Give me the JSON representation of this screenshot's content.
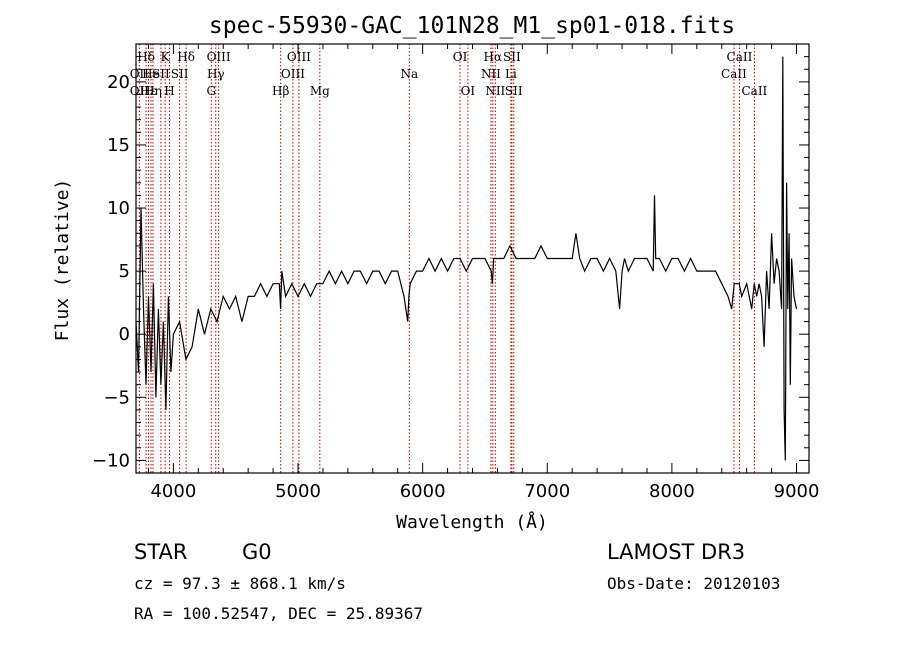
{
  "chart_data": {
    "type": "line",
    "title": "spec-55930-GAC_101N28_M1_sp01-018.fits",
    "xlabel": "Wavelength (Å)",
    "ylabel": "Flux (relative)",
    "xlim": [
      3700,
      9100
    ],
    "ylim": [
      -11,
      23
    ],
    "xticks": [
      4000,
      5000,
      6000,
      7000,
      8000,
      9000
    ],
    "yticks": [
      -10,
      -5,
      0,
      5,
      10,
      15,
      20
    ],
    "series": [
      {
        "name": "flux",
        "x": [
          3700,
          3720,
          3740,
          3760,
          3780,
          3800,
          3820,
          3840,
          3860,
          3880,
          3900,
          3920,
          3940,
          3960,
          3980,
          4000,
          4050,
          4100,
          4150,
          4200,
          4250,
          4300,
          4350,
          4400,
          4450,
          4500,
          4550,
          4600,
          4650,
          4700,
          4750,
          4800,
          4850,
          4860,
          4870,
          4900,
          4950,
          5000,
          5050,
          5100,
          5150,
          5200,
          5250,
          5300,
          5350,
          5400,
          5450,
          5500,
          5550,
          5600,
          5650,
          5700,
          5750,
          5800,
          5850,
          5880,
          5890,
          5900,
          5950,
          6000,
          6050,
          6100,
          6150,
          6200,
          6250,
          6300,
          6350,
          6400,
          6450,
          6500,
          6550,
          6560,
          6570,
          6600,
          6650,
          6700,
          6750,
          6800,
          6850,
          6900,
          6950,
          7000,
          7050,
          7100,
          7150,
          7200,
          7230,
          7260,
          7300,
          7350,
          7400,
          7450,
          7500,
          7550,
          7580,
          7600,
          7620,
          7650,
          7700,
          7750,
          7800,
          7850,
          7860,
          7870,
          7900,
          7950,
          8000,
          8050,
          8100,
          8150,
          8200,
          8250,
          8300,
          8350,
          8400,
          8450,
          8480,
          8500,
          8540,
          8560,
          8600,
          8640,
          8660,
          8680,
          8700,
          8720,
          8740,
          8760,
          8780,
          8800,
          8820,
          8840,
          8860,
          8880,
          8890,
          8900,
          8910,
          8920,
          8930,
          8940,
          8950,
          8960,
          8980,
          9000
        ],
        "y": [
          1,
          -3,
          10,
          2,
          -4,
          3,
          -3,
          4,
          -5,
          2,
          -4,
          1,
          -6,
          3,
          -3,
          0,
          1,
          -2,
          -1,
          2,
          0,
          2,
          1,
          3,
          2,
          3,
          1,
          3,
          3,
          4,
          3,
          4,
          4,
          2,
          5,
          3,
          4,
          3,
          4,
          3,
          4,
          4,
          5,
          4,
          5,
          4,
          5,
          5,
          4,
          5,
          5,
          4,
          5,
          5,
          3,
          1,
          3,
          4,
          5,
          5,
          6,
          5,
          6,
          5,
          6,
          6,
          5,
          6,
          6,
          6,
          5,
          4,
          6,
          6,
          6,
          7,
          6,
          6,
          6,
          6,
          7,
          6,
          6,
          6,
          6,
          6,
          8,
          6,
          5,
          6,
          6,
          5,
          6,
          5,
          2,
          5,
          6,
          5,
          6,
          6,
          6,
          5,
          11,
          6,
          6,
          5,
          6,
          6,
          5,
          6,
          5,
          5,
          5,
          5,
          4,
          3,
          2,
          4,
          4,
          3,
          4,
          2,
          4,
          3,
          4,
          3,
          -1,
          5,
          2,
          8,
          4,
          6,
          5,
          2,
          22,
          -6,
          -10,
          12,
          2,
          8,
          -4,
          6,
          3,
          2
        ]
      }
    ],
    "lines": [
      {
        "label": "Hδ",
        "x": 3781,
        "row": 0
      },
      {
        "label": "OII",
        "x": 3727,
        "row": 1
      },
      {
        "label": "OII",
        "x": 3727,
        "row": 2
      },
      {
        "label": "Hε",
        "x": 3800,
        "row": 2
      },
      {
        "label": "He",
        "x": 3820,
        "row": 1
      },
      {
        "label": "K",
        "x": 3934,
        "row": 0
      },
      {
        "label": "SII",
        "x": 3900,
        "row": 1
      },
      {
        "label": "Hη",
        "x": 3836,
        "row": 2
      },
      {
        "label": "H",
        "x": 3969,
        "row": 2
      },
      {
        "label": "Hδ",
        "x": 4102,
        "row": 0
      },
      {
        "label": "SII",
        "x": 4050,
        "row": 1
      },
      {
        "label": "OIII",
        "x": 4363,
        "row": 0
      },
      {
        "label": "Hγ",
        "x": 4340,
        "row": 1
      },
      {
        "label": "G",
        "x": 4304,
        "row": 2
      },
      {
        "label": "Hβ",
        "x": 4861,
        "row": 2
      },
      {
        "label": "OIII",
        "x": 5007,
        "row": 0
      },
      {
        "label": "OIII",
        "x": 4959,
        "row": 1
      },
      {
        "label": "Mg",
        "x": 5175,
        "row": 2
      },
      {
        "label": "Na",
        "x": 5893,
        "row": 1
      },
      {
        "label": "OI",
        "x": 6300,
        "row": 0
      },
      {
        "label": "OI",
        "x": 6363,
        "row": 2
      },
      {
        "label": "Hα",
        "x": 6563,
        "row": 0
      },
      {
        "label": "SII",
        "x": 6716,
        "row": 0
      },
      {
        "label": "NII",
        "x": 6548,
        "row": 1
      },
      {
        "label": "Li",
        "x": 6708,
        "row": 1
      },
      {
        "label": "NII",
        "x": 6583,
        "row": 2
      },
      {
        "label": "SII",
        "x": 6731,
        "row": 2
      },
      {
        "label": "CaII",
        "x": 8542,
        "row": 0
      },
      {
        "label": "CaII",
        "x": 8498,
        "row": 1
      },
      {
        "label": "CaII",
        "x": 8662,
        "row": 2
      }
    ]
  },
  "footer": {
    "class": "STAR",
    "subclass": "G0",
    "survey": "LAMOST DR3",
    "cz": "cz = 97.3 ± 868.1 km/s",
    "obs_date": "Obs-Date: 20120103",
    "radec": "RA = 100.52547, DEC =  25.89367"
  }
}
